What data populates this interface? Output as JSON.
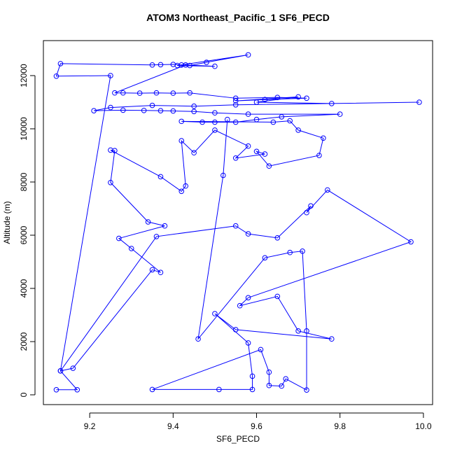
{
  "chart_data": {
    "type": "line",
    "title": "ATOM3 Northeast_Pacific_1 SF6_PECD",
    "x_label": "SF6_PECD",
    "y_label": "Altitude (m)",
    "x": [
      9.12,
      9.17,
      9.13,
      9.25,
      9.12,
      9.13,
      9.35,
      9.37,
      9.4,
      9.42,
      9.44,
      9.48,
      9.58,
      9.41,
      9.5,
      9.43,
      9.26,
      9.28,
      9.32,
      9.36,
      9.4,
      9.44,
      9.55,
      9.65,
      9.72,
      9.62,
      9.55,
      9.7,
      9.6,
      9.78,
      9.99,
      9.55,
      9.45,
      9.35,
      9.25,
      9.21,
      9.28,
      9.33,
      9.37,
      9.4,
      9.45,
      9.5,
      9.58,
      9.8,
      9.66,
      9.6,
      9.55,
      9.5,
      9.47,
      9.42,
      9.64,
      9.68,
      9.7,
      9.76,
      9.75,
      9.63,
      9.6,
      9.62,
      9.55,
      9.58,
      9.5,
      9.45,
      9.42,
      9.43,
      9.42,
      9.37,
      9.25,
      9.26,
      9.25,
      9.34,
      9.38,
      9.27,
      9.3,
      9.37,
      9.35,
      9.16,
      9.13,
      9.36,
      9.55,
      9.58,
      9.65,
      9.73,
      9.72,
      9.77,
      9.97,
      9.58,
      9.56,
      9.65,
      9.7,
      9.78,
      9.55,
      9.5,
      9.58,
      9.59,
      9.59,
      9.51,
      9.35,
      9.61,
      9.63,
      9.63,
      9.66,
      9.67,
      9.72,
      9.72,
      9.71,
      9.68,
      9.62,
      9.46,
      9.52,
      9.53
    ],
    "series": [
      {
        "name": "SF6_PECD",
        "color": "#0000ff",
        "values": [
          190,
          190,
          900,
          12000,
          11980,
          12450,
          12400,
          12410,
          12420,
          12400,
          12380,
          12500,
          12780,
          12380,
          12350,
          12400,
          11350,
          11350,
          11340,
          11350,
          11340,
          11350,
          11150,
          11180,
          11150,
          11100,
          11050,
          11200,
          11000,
          10950,
          11000,
          10900,
          10850,
          10880,
          10800,
          10680,
          10700,
          10690,
          10680,
          10670,
          10650,
          10600,
          10550,
          10550,
          10450,
          10350,
          10250,
          10250,
          10250,
          10280,
          10250,
          10300,
          9950,
          9650,
          9000,
          8600,
          9150,
          9050,
          8900,
          9350,
          9950,
          9100,
          9550,
          7850,
          7650,
          8200,
          9200,
          9180,
          7980,
          6500,
          6350,
          5880,
          5500,
          4600,
          4700,
          1000,
          900,
          5950,
          6350,
          6050,
          5900,
          7100,
          6850,
          7700,
          5750,
          3650,
          3350,
          3700,
          2400,
          2100,
          2450,
          3050,
          1950,
          700,
          200,
          200,
          200,
          1700,
          850,
          350,
          330,
          600,
          180,
          2400,
          5400,
          5350,
          5150,
          2100,
          8250,
          10350
        ]
      }
    ],
    "xlim": [
      9.089,
      10.022
    ],
    "ylim": [
      -368,
      13316
    ],
    "xticks": [
      9.2,
      9.4,
      9.6,
      9.8,
      {
        "value": 10,
        "label": "10.0"
      }
    ],
    "yticks": [
      0,
      2000,
      4000,
      6000,
      8000,
      10000,
      12000
    ]
  }
}
